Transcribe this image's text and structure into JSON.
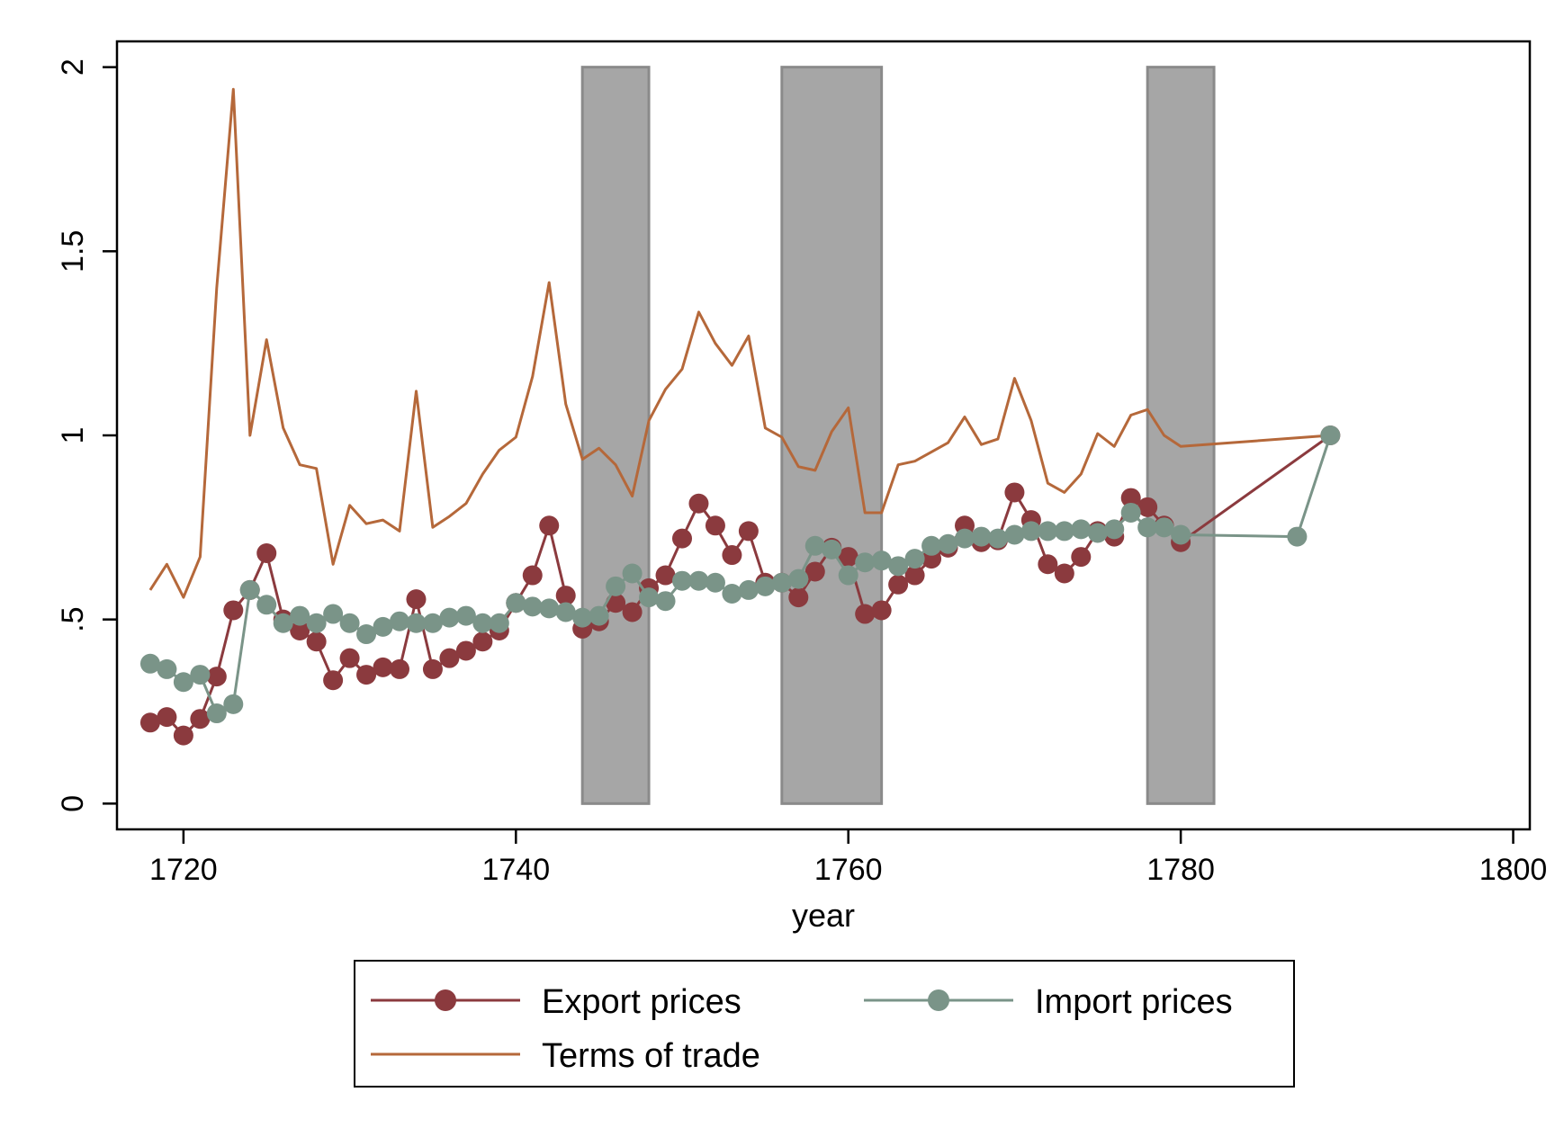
{
  "chart_data": {
    "type": "line",
    "xlabel": "year",
    "ylabel": "",
    "xlim": [
      1716,
      1801
    ],
    "ylim": [
      -0.07,
      2.07
    ],
    "xticks": [
      "1720",
      "1740",
      "1760",
      "1780",
      "1800"
    ],
    "yticks": [
      "0",
      ".5",
      "1",
      "1.5",
      "2"
    ],
    "grid": false,
    "legend_position": "bottom",
    "colors": {
      "export": "#8B3A3E",
      "import": "#7A9488",
      "terms": "#B5683A",
      "shade": "#a6a6a6",
      "shade_edge": "#8a8a8a"
    },
    "shaded_periods": [
      {
        "start": 1744,
        "end": 1748,
        "ymin": 0,
        "ymax": 2
      },
      {
        "start": 1756,
        "end": 1762,
        "ymin": 0,
        "ymax": 2
      },
      {
        "start": 1778,
        "end": 1782,
        "ymin": 0,
        "ymax": 2
      }
    ],
    "series": [
      {
        "name": "Export prices",
        "marker": true,
        "points": [
          [
            1718,
            0.22
          ],
          [
            1719,
            0.235
          ],
          [
            1720,
            0.185
          ],
          [
            1721,
            0.23
          ],
          [
            1722,
            0.345
          ],
          [
            1723,
            0.525
          ],
          [
            1724,
            0.58
          ],
          [
            1725,
            0.68
          ],
          [
            1726,
            0.5
          ],
          [
            1727,
            0.47
          ],
          [
            1728,
            0.44
          ],
          [
            1729,
            0.335
          ],
          [
            1730,
            0.395
          ],
          [
            1731,
            0.35
          ],
          [
            1732,
            0.37
          ],
          [
            1733,
            0.365
          ],
          [
            1734,
            0.555
          ],
          [
            1735,
            0.365
          ],
          [
            1736,
            0.395
          ],
          [
            1737,
            0.415
          ],
          [
            1738,
            0.44
          ],
          [
            1739,
            0.47
          ],
          [
            1740,
            0.545
          ],
          [
            1741,
            0.62
          ],
          [
            1742,
            0.755
          ],
          [
            1743,
            0.565
          ],
          [
            1744,
            0.475
          ],
          [
            1745,
            0.495
          ],
          [
            1746,
            0.545
          ],
          [
            1747,
            0.52
          ],
          [
            1748,
            0.585
          ],
          [
            1749,
            0.62
          ],
          [
            1750,
            0.72
          ],
          [
            1751,
            0.815
          ],
          [
            1752,
            0.755
          ],
          [
            1753,
            0.675
          ],
          [
            1754,
            0.74
          ],
          [
            1755,
            0.6
          ],
          [
            1756,
            0.6
          ],
          [
            1757,
            0.56
          ],
          [
            1758,
            0.63
          ],
          [
            1759,
            0.695
          ],
          [
            1760,
            0.67
          ],
          [
            1761,
            0.515
          ],
          [
            1762,
            0.525
          ],
          [
            1763,
            0.595
          ],
          [
            1764,
            0.62
          ],
          [
            1765,
            0.665
          ],
          [
            1766,
            0.695
          ],
          [
            1767,
            0.755
          ],
          [
            1768,
            0.71
          ],
          [
            1769,
            0.715
          ],
          [
            1770,
            0.845
          ],
          [
            1771,
            0.77
          ],
          [
            1772,
            0.65
          ],
          [
            1773,
            0.625
          ],
          [
            1774,
            0.67
          ],
          [
            1775,
            0.74
          ],
          [
            1776,
            0.725
          ],
          [
            1777,
            0.83
          ],
          [
            1778,
            0.805
          ],
          [
            1779,
            0.755
          ],
          [
            1780,
            0.71
          ],
          [
            1789,
            1.0
          ]
        ]
      },
      {
        "name": "Import prices",
        "marker": true,
        "points": [
          [
            1718,
            0.38
          ],
          [
            1719,
            0.365
          ],
          [
            1720,
            0.33
          ],
          [
            1721,
            0.35
          ],
          [
            1722,
            0.245
          ],
          [
            1723,
            0.27
          ],
          [
            1724,
            0.58
          ],
          [
            1725,
            0.54
          ],
          [
            1726,
            0.49
          ],
          [
            1727,
            0.51
          ],
          [
            1728,
            0.49
          ],
          [
            1729,
            0.515
          ],
          [
            1730,
            0.49
          ],
          [
            1731,
            0.46
          ],
          [
            1732,
            0.48
          ],
          [
            1733,
            0.495
          ],
          [
            1734,
            0.49
          ],
          [
            1735,
            0.49
          ],
          [
            1736,
            0.505
          ],
          [
            1737,
            0.51
          ],
          [
            1738,
            0.49
          ],
          [
            1739,
            0.49
          ],
          [
            1740,
            0.545
          ],
          [
            1741,
            0.535
          ],
          [
            1742,
            0.53
          ],
          [
            1743,
            0.52
          ],
          [
            1744,
            0.505
          ],
          [
            1745,
            0.51
          ],
          [
            1746,
            0.59
          ],
          [
            1747,
            0.625
          ],
          [
            1748,
            0.56
          ],
          [
            1749,
            0.55
          ],
          [
            1750,
            0.605
          ],
          [
            1751,
            0.605
          ],
          [
            1752,
            0.6
          ],
          [
            1753,
            0.57
          ],
          [
            1754,
            0.58
          ],
          [
            1755,
            0.59
          ],
          [
            1756,
            0.6
          ],
          [
            1757,
            0.61
          ],
          [
            1758,
            0.7
          ],
          [
            1759,
            0.69
          ],
          [
            1760,
            0.62
          ],
          [
            1761,
            0.655
          ],
          [
            1762,
            0.66
          ],
          [
            1763,
            0.645
          ],
          [
            1764,
            0.665
          ],
          [
            1765,
            0.7
          ],
          [
            1766,
            0.705
          ],
          [
            1767,
            0.72
          ],
          [
            1768,
            0.725
          ],
          [
            1769,
            0.72
          ],
          [
            1770,
            0.73
          ],
          [
            1771,
            0.74
          ],
          [
            1772,
            0.74
          ],
          [
            1773,
            0.74
          ],
          [
            1774,
            0.745
          ],
          [
            1775,
            0.735
          ],
          [
            1776,
            0.745
          ],
          [
            1777,
            0.79
          ],
          [
            1778,
            0.75
          ],
          [
            1779,
            0.75
          ],
          [
            1780,
            0.73
          ],
          [
            1787,
            0.725
          ],
          [
            1789,
            1.0
          ]
        ]
      },
      {
        "name": "Terms of trade",
        "marker": false,
        "points": [
          [
            1718,
            0.58
          ],
          [
            1719,
            0.65
          ],
          [
            1720,
            0.56
          ],
          [
            1721,
            0.67
          ],
          [
            1722,
            1.4
          ],
          [
            1723,
            1.94
          ],
          [
            1724,
            1.0
          ],
          [
            1725,
            1.26
          ],
          [
            1726,
            1.02
          ],
          [
            1727,
            0.92
          ],
          [
            1728,
            0.91
          ],
          [
            1729,
            0.65
          ],
          [
            1730,
            0.81
          ],
          [
            1731,
            0.76
          ],
          [
            1732,
            0.77
          ],
          [
            1733,
            0.74
          ],
          [
            1734,
            1.12
          ],
          [
            1735,
            0.75
          ],
          [
            1736,
            0.78
          ],
          [
            1737,
            0.815
          ],
          [
            1738,
            0.895
          ],
          [
            1739,
            0.96
          ],
          [
            1740,
            0.995
          ],
          [
            1741,
            1.16
          ],
          [
            1742,
            1.415
          ],
          [
            1743,
            1.085
          ],
          [
            1744,
            0.935
          ],
          [
            1745,
            0.965
          ],
          [
            1746,
            0.92
          ],
          [
            1747,
            0.835
          ],
          [
            1748,
            1.04
          ],
          [
            1749,
            1.125
          ],
          [
            1750,
            1.18
          ],
          [
            1751,
            1.335
          ],
          [
            1752,
            1.25
          ],
          [
            1753,
            1.19
          ],
          [
            1754,
            1.27
          ],
          [
            1755,
            1.02
          ],
          [
            1756,
            0.995
          ],
          [
            1757,
            0.915
          ],
          [
            1758,
            0.905
          ],
          [
            1759,
            1.01
          ],
          [
            1760,
            1.075
          ],
          [
            1761,
            0.79
          ],
          [
            1762,
            0.79
          ],
          [
            1763,
            0.92
          ],
          [
            1764,
            0.93
          ],
          [
            1765,
            0.955
          ],
          [
            1766,
            0.98
          ],
          [
            1767,
            1.05
          ],
          [
            1768,
            0.975
          ],
          [
            1769,
            0.99
          ],
          [
            1770,
            1.155
          ],
          [
            1771,
            1.04
          ],
          [
            1772,
            0.87
          ],
          [
            1773,
            0.845
          ],
          [
            1774,
            0.895
          ],
          [
            1775,
            1.005
          ],
          [
            1776,
            0.97
          ],
          [
            1777,
            1.055
          ],
          [
            1778,
            1.07
          ],
          [
            1779,
            1.0
          ],
          [
            1780,
            0.97
          ],
          [
            1789,
            1.0
          ]
        ]
      }
    ]
  }
}
